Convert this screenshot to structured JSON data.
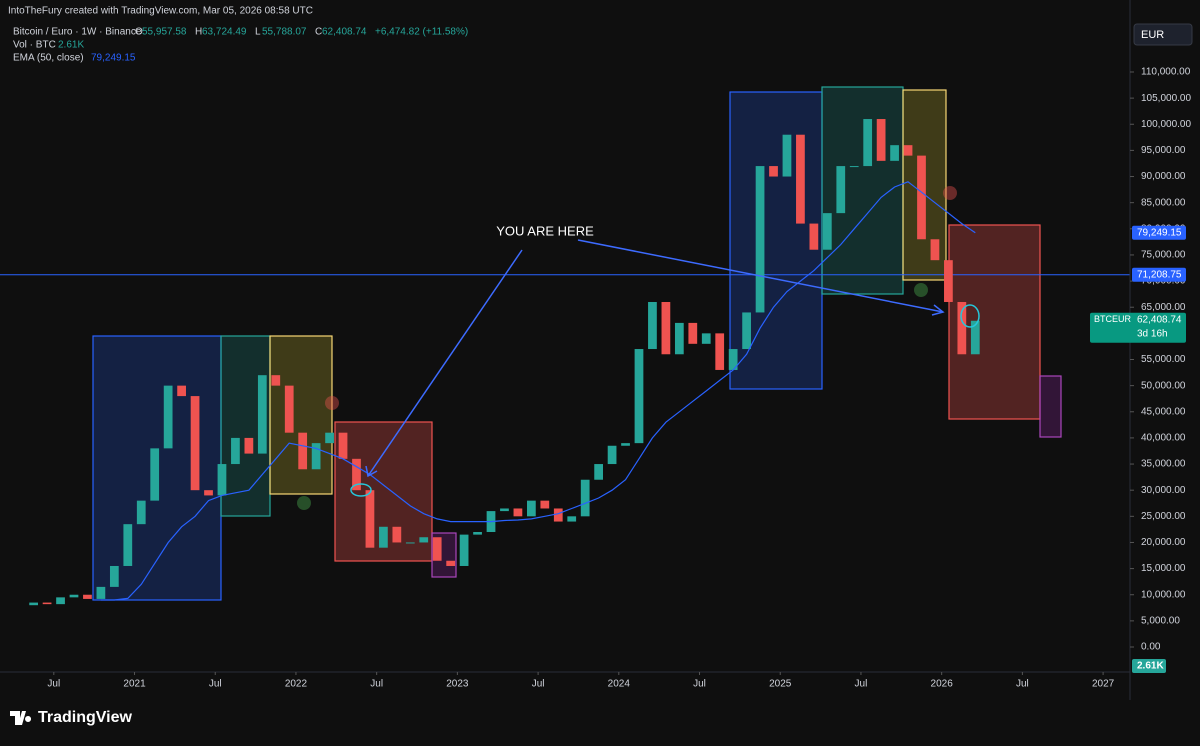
{
  "chart_data": {
    "type": "candlestick",
    "header": {
      "credit": "IntoTheFury created with TradingView.com, Mar 05, 2026 08:58 UTC",
      "symbol": "Bitcoin / Euro · 1W · Binance",
      "ohlc": [
        "O",
        "55,957.58",
        "H",
        "63,724.49",
        "L",
        "55,788.07",
        "C",
        "62,408.74"
      ],
      "change": "+6,474.82 (+11.58%)",
      "volume_name": "Vol · BTC",
      "volume_value": "2.61K",
      "ema_name": "EMA (50, close)",
      "ema_value": "79,249.15"
    },
    "currency": "EUR",
    "annotation": "YOU ARE HERE",
    "brand": "TradingView",
    "x": [
      "2020-04",
      "2020-05",
      "2020-06",
      "2020-07",
      "2020-08",
      "2020-09",
      "2020-10",
      "2020-11",
      "2020-12",
      "2021-01",
      "2021-02",
      "2021-03",
      "2021-04",
      "2021-05",
      "2021-06",
      "2021-07",
      "2021-08",
      "2021-09",
      "2021-10",
      "2021-11",
      "2021-12",
      "2022-01",
      "2022-02",
      "2022-03",
      "2022-04",
      "2022-05",
      "2022-06",
      "2022-07",
      "2022-08",
      "2022-09",
      "2022-10",
      "2022-11",
      "2022-12",
      "2023-01",
      "2023-02",
      "2023-03",
      "2023-04",
      "2023-05",
      "2023-06",
      "2023-07",
      "2023-08",
      "2023-09",
      "2023-10",
      "2023-11",
      "2023-12",
      "2024-01",
      "2024-02",
      "2024-03",
      "2024-04",
      "2024-05",
      "2024-06",
      "2024-07",
      "2024-08",
      "2024-09",
      "2024-10",
      "2024-11",
      "2024-12",
      "2025-01",
      "2025-02",
      "2025-03",
      "2025-04",
      "2025-05",
      "2025-06",
      "2025-07",
      "2025-08",
      "2025-09",
      "2025-10",
      "2025-11",
      "2025-12",
      "2026-01",
      "2026-02",
      "2026-03"
    ],
    "series": [
      {
        "name": "BTCEUR",
        "color_up": "#26a69a",
        "color_down": "#ef5350",
        "values": [
          8000,
          8500,
          8200,
          9500,
          10000,
          9200,
          11500,
          15500,
          23500,
          28000,
          38000,
          50000,
          48000,
          30000,
          29000,
          35000,
          40000,
          37000,
          52000,
          50000,
          41000,
          34000,
          39000,
          41000,
          36000,
          30000,
          19000,
          23000,
          20000,
          20000,
          21000,
          16500,
          15500,
          21500,
          22000,
          26000,
          26500,
          25000,
          28000,
          26500,
          24000,
          25000,
          32000,
          35000,
          38500,
          39000,
          57000,
          66000,
          56000,
          62000,
          58000,
          60000,
          53000,
          57000,
          64000,
          92000,
          90000,
          98000,
          81000,
          76000,
          83000,
          92000,
          92000,
          101000,
          93000,
          96000,
          94000,
          78000,
          74000,
          66000,
          56000,
          62408.74
        ]
      },
      {
        "name": "EMA",
        "color": "#2962ff",
        "values": [
          null,
          null,
          null,
          null,
          null,
          null,
          9000,
          9000,
          9300,
          12000,
          16000,
          20000,
          23000,
          25000,
          28000,
          29000,
          29500,
          30000,
          33000,
          36000,
          39000,
          38500,
          38000,
          37000,
          36000,
          34500,
          33000,
          31000,
          29000,
          27000,
          25500,
          24500,
          24000,
          24000,
          24000,
          24000,
          24200,
          24300,
          24500,
          25000,
          25500,
          26500,
          27500,
          28500,
          30000,
          32000,
          36000,
          40000,
          43000,
          45000,
          47000,
          49000,
          51000,
          53000,
          56000,
          61000,
          65000,
          68000,
          70000,
          72000,
          74500,
          77000,
          80000,
          83000,
          86000,
          88000,
          89000,
          87000,
          85000,
          83000,
          81000,
          79249.15
        ]
      }
    ],
    "price_line": {
      "value": 71208.75,
      "label": "71,208.75"
    },
    "last_label": {
      "symbol": "BTCEUR",
      "value": "62,408.74",
      "countdown": "3d 16h"
    },
    "ema_label": "79,249.15",
    "ylim": [
      -4780,
      123770
    ],
    "yticks": [
      {
        "value": 0,
        "label": "0.00"
      },
      {
        "value": 5000,
        "label": "5,000.00"
      },
      {
        "value": 10000,
        "label": "10,000.00"
      },
      {
        "value": 15000,
        "label": "15,000.00"
      },
      {
        "value": 20000,
        "label": "20,000.00"
      },
      {
        "value": 25000,
        "label": "25,000.00"
      },
      {
        "value": 30000,
        "label": "30,000.00"
      },
      {
        "value": 35000,
        "label": "35,000.00"
      },
      {
        "value": 40000,
        "label": "40,000.00"
      },
      {
        "value": 45000,
        "label": "45,000.00"
      },
      {
        "value": 50000,
        "label": "50,000.00"
      },
      {
        "value": 55000,
        "label": "55,000.00"
      },
      {
        "value": 60000,
        "label": "60,000.00"
      },
      {
        "value": 65000,
        "label": "65,000.00"
      },
      {
        "value": 70000,
        "label": "70,000.00"
      },
      {
        "value": 75000,
        "label": "75,000.00"
      },
      {
        "value": 80000,
        "label": "80,000.00"
      },
      {
        "value": 85000,
        "label": "85,000.00"
      },
      {
        "value": 90000,
        "label": "90,000.00"
      },
      {
        "value": 95000,
        "label": "95,000.00"
      },
      {
        "value": 100000,
        "label": "100,000.00"
      },
      {
        "value": 105000,
        "label": "105,000.00"
      },
      {
        "value": 110000,
        "label": "110,000.00"
      }
    ],
    "xlim": [
      "2020-03",
      "2027-03"
    ],
    "xticks": [
      {
        "value": "2020-07",
        "label": "Jul"
      },
      {
        "value": "2021-01",
        "label": "2021"
      },
      {
        "value": "2021-07",
        "label": "Jul"
      },
      {
        "value": "2022-01",
        "label": "2022"
      },
      {
        "value": "2022-07",
        "label": "Jul"
      },
      {
        "value": "2023-01",
        "label": "2023"
      },
      {
        "value": "2023-07",
        "label": "Jul"
      },
      {
        "value": "2024-01",
        "label": "2024"
      },
      {
        "value": "2024-07",
        "label": "Jul"
      },
      {
        "value": "2025-01",
        "label": "2025"
      },
      {
        "value": "2025-07",
        "label": "Jul"
      },
      {
        "value": "2026-01",
        "label": "2026"
      },
      {
        "value": "2026-07",
        "label": "Jul"
      },
      {
        "value": "2027-01",
        "label": "2027"
      }
    ]
  }
}
